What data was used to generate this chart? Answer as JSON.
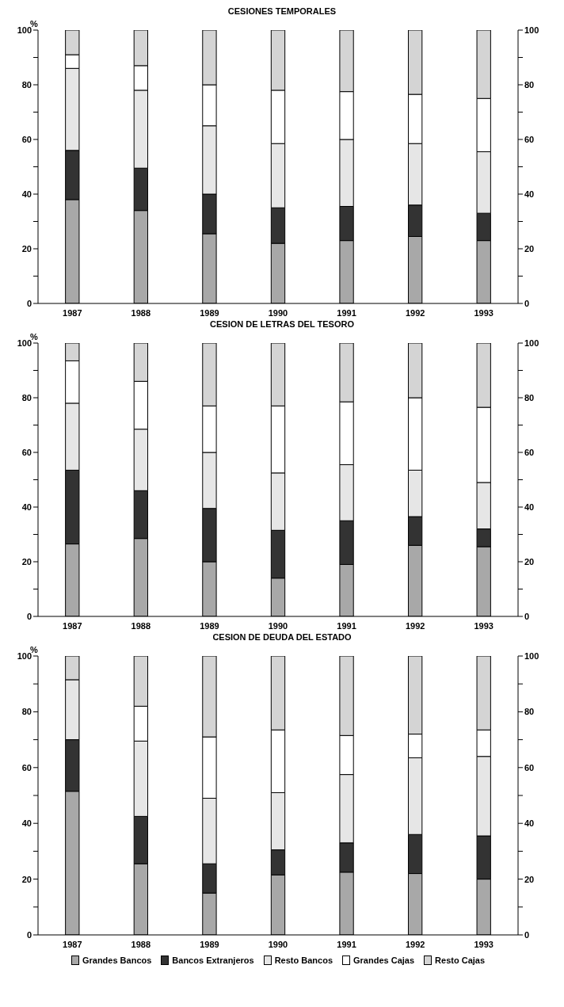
{
  "chart_data": [
    {
      "type": "bar",
      "title": "CESIONES TEMPORALES",
      "ylabel": "%",
      "stacked": true,
      "legend": false,
      "categories": [
        "1987",
        "1988",
        "1989",
        "1990",
        "1991",
        "1992",
        "1993"
      ],
      "ylim": [
        0,
        100
      ],
      "yticks": [
        0,
        {
          "value": 10,
          "label": null
        },
        20,
        {
          "value": 30,
          "label": null
        },
        40,
        {
          "value": 50,
          "label": null
        },
        60,
        {
          "value": 70,
          "label": null
        },
        80,
        {
          "value": 90,
          "label": null
        },
        100
      ],
      "y2lim": [
        0,
        100
      ],
      "y2ticks": [
        0,
        {
          "value": 10,
          "label": null
        },
        20,
        {
          "value": 30,
          "label": null
        },
        40,
        {
          "value": 50,
          "label": null
        },
        60,
        {
          "value": 70,
          "label": null
        },
        80,
        {
          "value": 90,
          "label": null
        },
        100
      ],
      "series": [
        {
          "color": "#a8a8a8",
          "values": [
            38,
            34,
            25.5,
            22,
            23,
            24.5,
            23
          ]
        },
        {
          "color": "#333333",
          "values": [
            18,
            15.5,
            14.5,
            13,
            12.5,
            11.5,
            10
          ]
        },
        {
          "color": "#e6e6e6",
          "values": [
            30,
            28.5,
            25,
            23.5,
            24.5,
            22.5,
            22.5
          ]
        },
        {
          "color": "#ffffff",
          "values": [
            5,
            9,
            15,
            19.5,
            17.5,
            18,
            19.5
          ]
        },
        {
          "color": "#d4d4d4",
          "values": [
            9,
            13,
            20,
            22,
            22.5,
            23.5,
            25
          ]
        }
      ]
    },
    {
      "type": "bar",
      "title": "CESION DE LETRAS DEL TESORO",
      "ylabel": "%",
      "stacked": true,
      "legend": false,
      "categories": [
        "1987",
        "1988",
        "1989",
        "1990",
        "1991",
        "1992",
        "1993"
      ],
      "ylim": [
        0,
        100
      ],
      "yticks": [
        0,
        {
          "value": 10,
          "label": null
        },
        20,
        {
          "value": 30,
          "label": null
        },
        40,
        {
          "value": 50,
          "label": null
        },
        60,
        {
          "value": 70,
          "label": null
        },
        80,
        {
          "value": 90,
          "label": null
        },
        100
      ],
      "y2lim": [
        0,
        100
      ],
      "y2ticks": [
        0,
        {
          "value": 10,
          "label": null
        },
        20,
        {
          "value": 30,
          "label": null
        },
        40,
        {
          "value": 50,
          "label": null
        },
        60,
        {
          "value": 70,
          "label": null
        },
        80,
        {
          "value": 90,
          "label": null
        },
        100
      ],
      "series": [
        {
          "color": "#a8a8a8",
          "values": [
            26.5,
            28.5,
            20,
            14,
            19,
            26,
            25.5
          ]
        },
        {
          "color": "#333333",
          "values": [
            27,
            17.5,
            19.5,
            17.5,
            16,
            10.5,
            6.5
          ]
        },
        {
          "color": "#e6e6e6",
          "values": [
            24.5,
            22.5,
            20.5,
            21,
            20.5,
            17,
            17
          ]
        },
        {
          "color": "#ffffff",
          "values": [
            15.5,
            17.5,
            17,
            24.5,
            23,
            26.5,
            27.5
          ]
        },
        {
          "color": "#d4d4d4",
          "values": [
            6.5,
            14,
            23,
            23,
            21.5,
            20,
            23.5
          ]
        }
      ]
    },
    {
      "type": "bar",
      "title": "CESION DE DEUDA DEL ESTADO",
      "ylabel": "%",
      "stacked": true,
      "legend": "bottom",
      "categories": [
        "1987",
        "1988",
        "1989",
        "1990",
        "1991",
        "1992",
        "1993"
      ],
      "ylim": [
        0,
        100
      ],
      "yticks": [
        0,
        {
          "value": 10,
          "label": null
        },
        20,
        {
          "value": 30,
          "label": null
        },
        40,
        {
          "value": 50,
          "label": null
        },
        60,
        {
          "value": 70,
          "label": null
        },
        80,
        {
          "value": 90,
          "label": null
        },
        100
      ],
      "y2lim": [
        0,
        100
      ],
      "y2ticks": [
        0,
        {
          "value": 10,
          "label": null
        },
        20,
        {
          "value": 30,
          "label": null
        },
        40,
        {
          "value": 50,
          "label": null
        },
        60,
        {
          "value": 70,
          "label": null
        },
        80,
        {
          "value": 90,
          "label": null
        },
        100
      ],
      "series": [
        {
          "name": "Grandes Bancos",
          "color": "#a8a8a8",
          "values": [
            51.5,
            25.5,
            15,
            21.5,
            22.5,
            22,
            20
          ]
        },
        {
          "name": "Bancos Extranjeros",
          "color": "#333333",
          "values": [
            18.5,
            17,
            10.5,
            9,
            10.5,
            14,
            15.5
          ]
        },
        {
          "name": "Resto Bancos",
          "color": "#e6e6e6",
          "values": [
            21.5,
            27,
            23.5,
            20.5,
            24.5,
            27.5,
            28.5
          ]
        },
        {
          "name": "Grandes Cajas",
          "color": "#ffffff",
          "values": [
            null,
            12.5,
            22,
            22.5,
            14,
            8.5,
            9.5
          ]
        },
        {
          "name": "Resto Cajas",
          "color": "#d4d4d4",
          "values": [
            8.5,
            18,
            29,
            26.5,
            28.5,
            28,
            26.5
          ]
        }
      ]
    }
  ]
}
